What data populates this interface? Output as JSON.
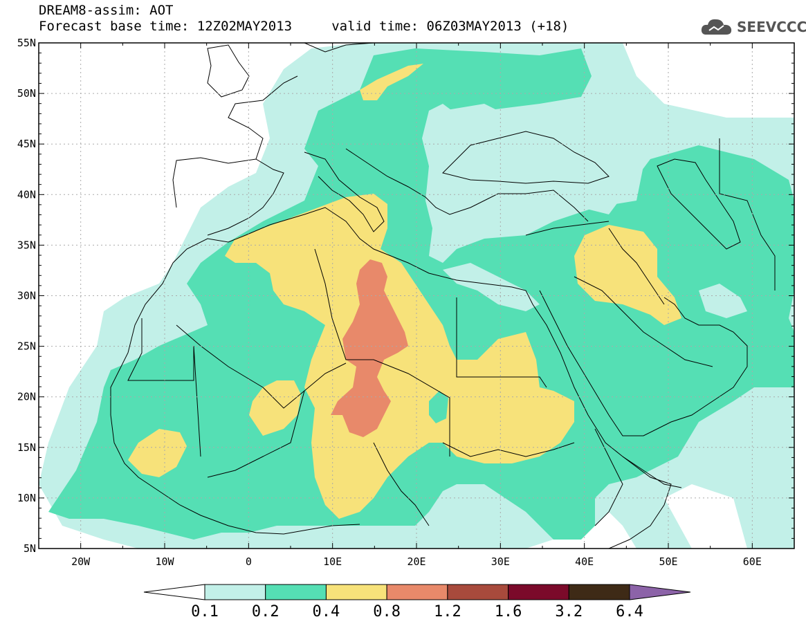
{
  "header": {
    "title": "DREAM8-assim: AOT",
    "subtitle": "Forecast base time: 12Z02MAY2013     valid time: 06Z03MAY2013 (+18)",
    "logo_text": "SEEVCCC"
  },
  "map": {
    "lat_labels": [
      "55N",
      "50N",
      "45N",
      "40N",
      "35N",
      "30N",
      "25N",
      "20N",
      "15N",
      "10N",
      "5N"
    ],
    "lon_labels": [
      "20W",
      "10W",
      "0",
      "10E",
      "20E",
      "30E",
      "40E",
      "50E",
      "60E"
    ],
    "lon_range": [
      -25,
      65
    ],
    "lat_range": [
      5,
      55
    ],
    "grid": true
  },
  "colorbar": {
    "levels": [
      "0.1",
      "0.2",
      "0.4",
      "0.8",
      "1.2",
      "1.6",
      "3.2",
      "6.4"
    ],
    "colors": [
      "#ffffff",
      "#c2f0e8",
      "#55dfb4",
      "#f7e27a",
      "#e8896a",
      "#a84a3c",
      "#7b0a2a",
      "#3e2a16",
      "#8c63a8"
    ]
  }
}
